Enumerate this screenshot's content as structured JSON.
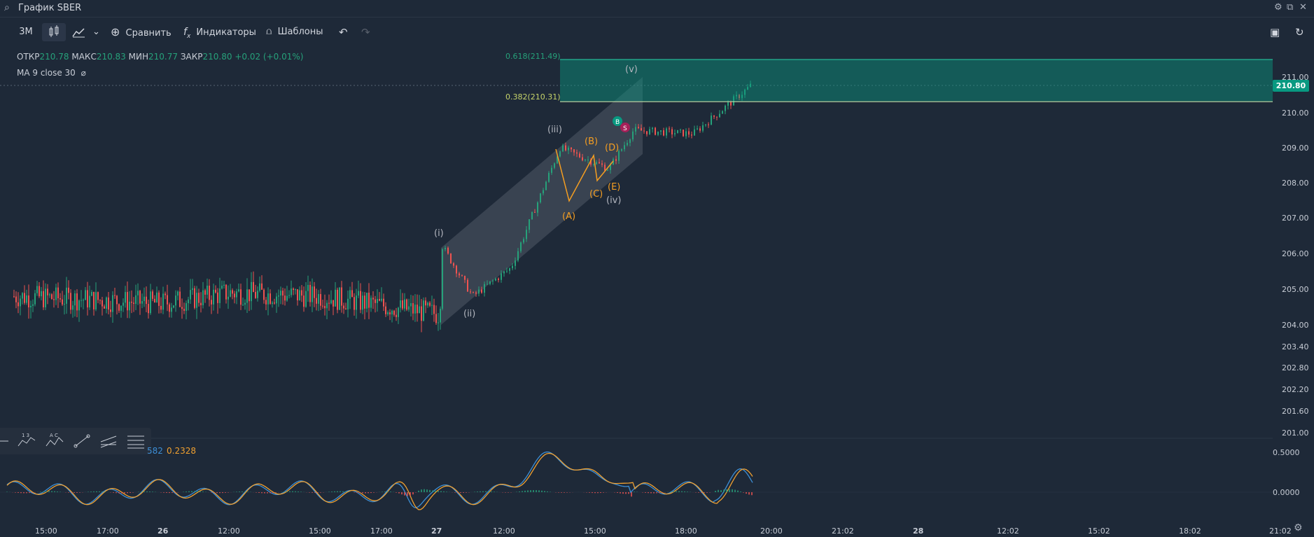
{
  "window": {
    "title": "График SBER"
  },
  "toolbar": {
    "interval": "3M",
    "compare": "Сравнить",
    "indicators": "Индикаторы",
    "templates": "Шаблоны"
  },
  "legend": {
    "open_label": "ОТКР",
    "open": "210.78",
    "high_label": "МАКС",
    "high": "210.83",
    "low_label": "МИН",
    "low": "210.77",
    "close_label": "ЗАКР",
    "close": "210.80",
    "change": "+0.02 (+0.01%)",
    "ma": "MA 9 close 30"
  },
  "fib": {
    "top": "0.618(211.49)",
    "bottom": "0.382(210.31)"
  },
  "last_price": "210.80",
  "oscillator": {
    "value_a": "582",
    "value_b": "0.2328",
    "tick_top": "0.5000",
    "tick_zero": "0.0000"
  },
  "colors": {
    "up": "#26a17a",
    "down": "#ef5350",
    "accent": "#089981",
    "wave_orange": "#f59e21",
    "wave_grey": "#b2b5be"
  },
  "chart_data": {
    "type": "candlestick",
    "title": "",
    "y_ticks": [
      211.0,
      210.0,
      209.0,
      208.0,
      207.0,
      206.0,
      205.0,
      204.0,
      203.4,
      202.8,
      202.2,
      201.6,
      201.0
    ],
    "y_tick_labels": [
      "211.00",
      "210.00",
      "209.00",
      "208.00",
      "207.00",
      "206.00",
      "205.00",
      "204.00",
      "203.40",
      "202.80",
      "202.20",
      "201.60",
      "201.00"
    ],
    "x_tick_labels": [
      "15:00",
      "17:00",
      "26",
      "12:00",
      "15:00",
      "17:00",
      "27",
      "12:00",
      "15:00",
      "18:00",
      "20:00",
      "21:02",
      "28",
      "12:02",
      "15:02",
      "18:02",
      "21:02"
    ],
    "fib_levels": [
      {
        "ratio": 0.618,
        "price": 211.49
      },
      {
        "ratio": 0.382,
        "price": 210.31
      }
    ],
    "wave_labels": {
      "impulse": [
        "(i)",
        "(ii)",
        "(iii)",
        "(iv)",
        "(v)"
      ],
      "correction": [
        "(A)",
        "(B)",
        "(C)",
        "(D)",
        "(E)"
      ]
    },
    "markers": [
      "B",
      "S"
    ],
    "price_path": [
      {
        "t": "15:00",
        "price": 204.8
      },
      {
        "t": "17:00",
        "price": 204.7
      },
      {
        "t": "26",
        "price": 204.6
      },
      {
        "t": "12:00",
        "price": 204.9
      },
      {
        "t": "15:00",
        "price": 204.8
      },
      {
        "t": "17:00",
        "price": 204.5
      },
      {
        "t": "27",
        "price": 204.3
      },
      {
        "t": "(i)",
        "price": 206.2
      },
      {
        "t": "(ii)",
        "price": 204.8
      },
      {
        "t": "12:00",
        "price": 205.6
      },
      {
        "t": "(iii)",
        "price": 209.0
      },
      {
        "t": "(iv)",
        "price": 208.4
      },
      {
        "t": "15:00",
        "price": 209.5
      },
      {
        "t": "18:00",
        "price": 209.4
      },
      {
        "t": "20:00",
        "price": 210.8
      }
    ],
    "oscillator_ticks": [
      "0.5000",
      "0.0000"
    ]
  }
}
